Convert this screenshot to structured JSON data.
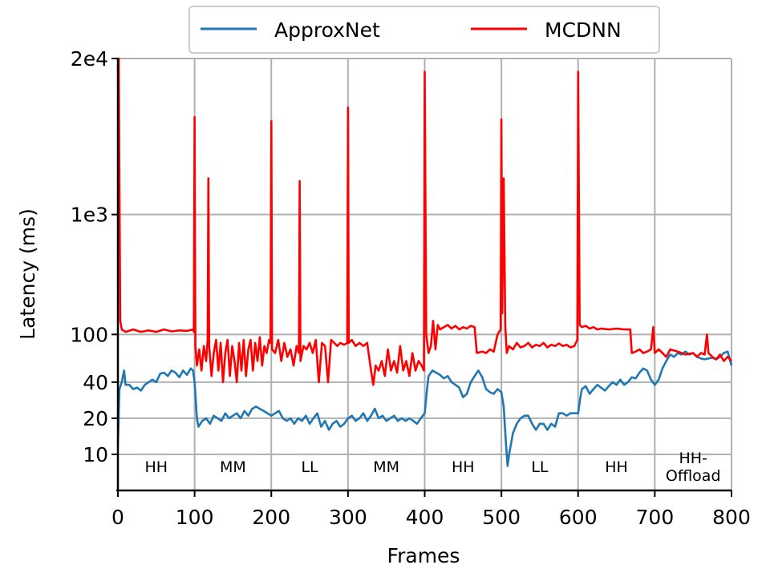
{
  "chart_data": {
    "type": "line",
    "x_label": "Frames",
    "y_label": "Latency (ms)",
    "log_y": true,
    "grid": true,
    "legend": "upper center",
    "xlim": [
      0,
      800
    ],
    "xticks": [
      0,
      100,
      200,
      300,
      400,
      500,
      600,
      700,
      800
    ],
    "ylim": [
      5,
      20000
    ],
    "yticks": [
      10,
      20,
      40,
      100,
      {
        "value": 1000,
        "label": "1e3"
      },
      {
        "value": 20000,
        "label": "2e4"
      }
    ],
    "annotations": [
      [
        "HH"
      ],
      [
        "MM"
      ],
      [
        "LL"
      ],
      [
        "MM"
      ],
      [
        "HH"
      ],
      [
        "LL"
      ],
      [
        "HH"
      ],
      [
        "HH-",
        "Offload"
      ]
    ],
    "series": [
      {
        "name": "ApproxNet",
        "color": "#1f77b4",
        "x": [
          0,
          2,
          5,
          8,
          10,
          15,
          20,
          25,
          30,
          35,
          40,
          45,
          50,
          55,
          60,
          65,
          70,
          75,
          80,
          85,
          90,
          95,
          98,
          100,
          103,
          105,
          110,
          115,
          120,
          125,
          130,
          135,
          140,
          145,
          150,
          155,
          160,
          165,
          170,
          175,
          180,
          185,
          190,
          195,
          200,
          205,
          210,
          215,
          220,
          225,
          230,
          235,
          240,
          245,
          250,
          255,
          260,
          265,
          270,
          275,
          280,
          285,
          290,
          295,
          300,
          305,
          310,
          315,
          320,
          325,
          330,
          335,
          340,
          345,
          350,
          355,
          360,
          365,
          370,
          375,
          380,
          385,
          390,
          395,
          400,
          403,
          405,
          410,
          415,
          420,
          425,
          430,
          435,
          440,
          445,
          450,
          455,
          460,
          465,
          470,
          475,
          480,
          485,
          490,
          495,
          500,
          503,
          506,
          508,
          510,
          515,
          520,
          525,
          530,
          535,
          540,
          545,
          550,
          555,
          560,
          565,
          570,
          575,
          580,
          585,
          590,
          595,
          600,
          603,
          605,
          610,
          615,
          620,
          625,
          630,
          635,
          640,
          645,
          650,
          655,
          660,
          665,
          670,
          675,
          680,
          685,
          690,
          695,
          700,
          705,
          710,
          715,
          720,
          725,
          730,
          735,
          740,
          745,
          750,
          755,
          760,
          765,
          770,
          775,
          780,
          785,
          790,
          795,
          800
        ],
        "values": [
          12,
          35,
          40,
          50,
          38,
          38,
          35,
          36,
          34,
          38,
          40,
          42,
          40,
          47,
          48,
          45,
          50,
          48,
          44,
          50,
          46,
          52,
          50,
          40,
          20,
          17,
          19,
          20,
          18,
          21,
          20,
          19,
          22,
          20,
          21,
          22,
          20,
          23,
          21,
          24,
          25,
          24,
          23,
          22,
          21,
          22,
          23,
          20,
          19,
          20,
          18,
          20,
          19,
          21,
          18,
          20,
          22,
          17,
          19,
          16,
          18,
          19,
          17,
          18,
          20,
          21,
          19,
          20,
          22,
          19,
          21,
          24,
          20,
          21,
          19,
          20,
          21,
          19,
          20,
          19,
          20,
          19,
          18,
          20,
          22,
          35,
          45,
          50,
          48,
          46,
          43,
          45,
          40,
          38,
          36,
          30,
          32,
          40,
          45,
          50,
          44,
          35,
          33,
          32,
          35,
          33,
          25,
          12,
          8,
          10,
          15,
          18,
          20,
          21,
          21,
          18,
          16,
          18,
          18,
          16,
          18,
          17,
          22,
          22,
          21,
          22,
          22,
          22,
          30,
          35,
          37,
          32,
          35,
          38,
          36,
          34,
          37,
          40,
          38,
          42,
          38,
          40,
          44,
          43,
          48,
          52,
          50,
          42,
          38,
          42,
          52,
          60,
          68,
          65,
          70,
          68,
          72,
          68,
          70,
          65,
          63,
          62,
          63,
          64,
          62,
          65,
          70,
          72,
          55
        ]
      },
      {
        "name": "MCDNN",
        "color": "#ff0000",
        "x": [
          0,
          1,
          3,
          5,
          10,
          20,
          30,
          40,
          50,
          60,
          70,
          80,
          90,
          98,
          99,
          100,
          101,
          103,
          106,
          109,
          112,
          115,
          117,
          118,
          119,
          122,
          125,
          128,
          131,
          134,
          137,
          140,
          143,
          146,
          149,
          152,
          155,
          158,
          161,
          164,
          167,
          170,
          173,
          176,
          179,
          182,
          185,
          188,
          191,
          194,
          197,
          199,
          200,
          201,
          205,
          209,
          213,
          217,
          221,
          225,
          229,
          233,
          236,
          237,
          238,
          242,
          246,
          250,
          254,
          258,
          262,
          266,
          270,
          274,
          278,
          282,
          286,
          290,
          295,
          299,
          300,
          301,
          305,
          310,
          315,
          320,
          325,
          330,
          333,
          336,
          340,
          344,
          348,
          352,
          356,
          360,
          364,
          368,
          372,
          376,
          380,
          384,
          388,
          392,
          396,
          399,
          400,
          402,
          405,
          408,
          411,
          414,
          417,
          420,
          425,
          430,
          435,
          440,
          445,
          450,
          455,
          460,
          465,
          468,
          475,
          480,
          485,
          490,
          495,
          499,
          500,
          501,
          503,
          505,
          507,
          510,
          515,
          520,
          525,
          530,
          535,
          540,
          545,
          550,
          555,
          560,
          565,
          570,
          575,
          580,
          585,
          590,
          595,
          599,
          600,
          602,
          605,
          610,
          615,
          620,
          625,
          630,
          640,
          650,
          660,
          668,
          670,
          675,
          680,
          685,
          690,
          695,
          698,
          700,
          705,
          710,
          715,
          720,
          730,
          740,
          750,
          755,
          760,
          765,
          768,
          770,
          775,
          780,
          785,
          790,
          795,
          800
        ],
        "values": [
          20000,
          20000,
          130,
          110,
          105,
          110,
          105,
          108,
          105,
          110,
          106,
          108,
          107,
          110,
          105,
          6500,
          80,
          55,
          75,
          50,
          80,
          60,
          90,
          2000,
          80,
          45,
          70,
          90,
          50,
          85,
          40,
          70,
          90,
          45,
          80,
          60,
          40,
          85,
          50,
          90,
          45,
          75,
          90,
          50,
          85,
          60,
          95,
          55,
          80,
          70,
          90,
          85,
          6000,
          75,
          70,
          90,
          60,
          85,
          65,
          75,
          55,
          80,
          70,
          1900,
          60,
          80,
          75,
          85,
          70,
          90,
          40,
          85,
          80,
          40,
          90,
          85,
          80,
          85,
          82,
          85,
          7800,
          85,
          90,
          80,
          85,
          80,
          85,
          50,
          38,
          55,
          50,
          60,
          45,
          75,
          50,
          60,
          48,
          80,
          50,
          60,
          45,
          70,
          50,
          60,
          55,
          50,
          15500,
          100,
          70,
          80,
          130,
          75,
          120,
          110,
          115,
          120,
          112,
          118,
          110,
          115,
          112,
          118,
          115,
          70,
          72,
          70,
          75,
          72,
          100,
          110,
          6200,
          150,
          2000,
          120,
          70,
          80,
          75,
          85,
          78,
          80,
          85,
          78,
          82,
          80,
          85,
          78,
          82,
          80,
          84,
          80,
          82,
          78,
          80,
          90,
          15500,
          120,
          115,
          118,
          112,
          115,
          110,
          112,
          110,
          112,
          110,
          110,
          70,
          72,
          75,
          70,
          72,
          75,
          115,
          70,
          75,
          70,
          65,
          75,
          72,
          68,
          70,
          65,
          70,
          68,
          100,
          70,
          65,
          62,
          68,
          60,
          65,
          60
        ]
      }
    ]
  }
}
